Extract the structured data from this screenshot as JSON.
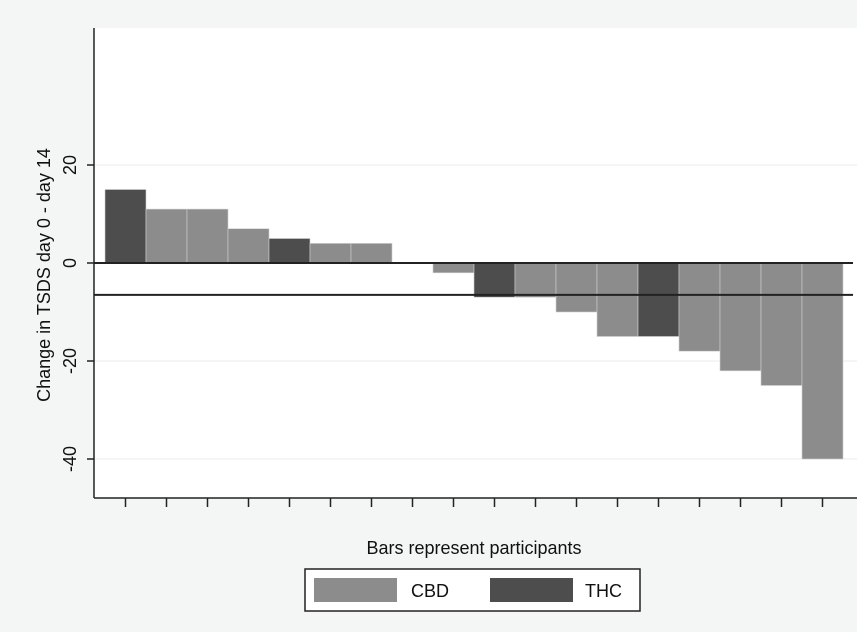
{
  "chart_data": {
    "type": "bar",
    "title": "",
    "ylabel": "Change in TSDS day 0 - day 14",
    "xlabel": "Bars represent participants",
    "ylim": [
      -48,
      48
    ],
    "yticks": [
      20,
      0,
      -20,
      -40
    ],
    "ytick_labels": [
      "20",
      "0",
      "-20",
      "-40"
    ],
    "grid": true,
    "reference_lines": [
      0,
      -6.5
    ],
    "legend_position": "bottom-center",
    "legend": [
      {
        "name": "CBD",
        "color": "#8c8c8c"
      },
      {
        "name": "THC",
        "color": "#4d4d4d"
      }
    ],
    "bars": [
      {
        "group": "THC",
        "value": 15
      },
      {
        "group": "CBD",
        "value": 11
      },
      {
        "group": "CBD",
        "value": 11
      },
      {
        "group": "CBD",
        "value": 7
      },
      {
        "group": "THC",
        "value": 5
      },
      {
        "group": "CBD",
        "value": 4
      },
      {
        "group": "CBD",
        "value": 4
      },
      {
        "group": "CBD",
        "value": 0
      },
      {
        "group": "CBD",
        "value": -2
      },
      {
        "group": "THC",
        "value": -7
      },
      {
        "group": "CBD",
        "value": -7
      },
      {
        "group": "CBD",
        "value": -10
      },
      {
        "group": "CBD",
        "value": -15
      },
      {
        "group": "THC",
        "value": -15
      },
      {
        "group": "CBD",
        "value": -18
      },
      {
        "group": "CBD",
        "value": -22
      },
      {
        "group": "CBD",
        "value": -25
      },
      {
        "group": "CBD",
        "value": -40
      }
    ]
  }
}
